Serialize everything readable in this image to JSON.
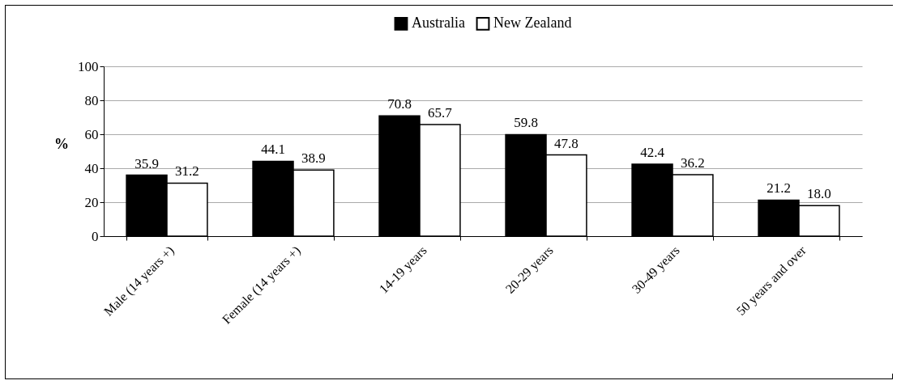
{
  "chart_data": {
    "type": "bar",
    "ylabel": "%",
    "categories": [
      "Male (14 years +)",
      "Female (14 years +)",
      "14-19 years",
      "20-29 years",
      "30-49 years",
      "50 years and over"
    ],
    "series": [
      {
        "name": "Australia",
        "color": "#000000",
        "values": [
          35.9,
          44.1,
          70.8,
          59.8,
          42.4,
          21.2
        ],
        "value_labels": [
          "35.9",
          "44.1",
          "70.8",
          "59.8",
          "42.4",
          "21.2"
        ]
      },
      {
        "name": "New Zealand",
        "color": "#ffffff",
        "values": [
          31.2,
          38.9,
          65.7,
          47.8,
          36.2,
          18.0
        ],
        "value_labels": [
          "31.2",
          "38.9",
          "65.7",
          "47.8",
          "36.2",
          "18.0"
        ]
      }
    ],
    "ylim": [
      0,
      100
    ],
    "yticks": [
      0,
      20,
      40,
      60,
      80,
      100
    ],
    "grid": "y",
    "legend": "top"
  }
}
